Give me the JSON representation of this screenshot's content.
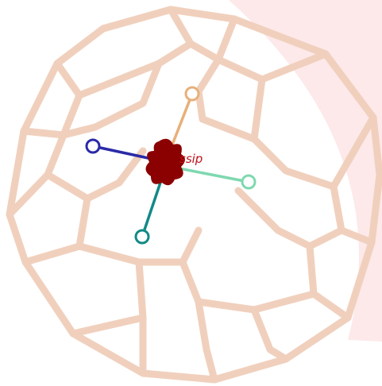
{
  "label": "ssip"
}
